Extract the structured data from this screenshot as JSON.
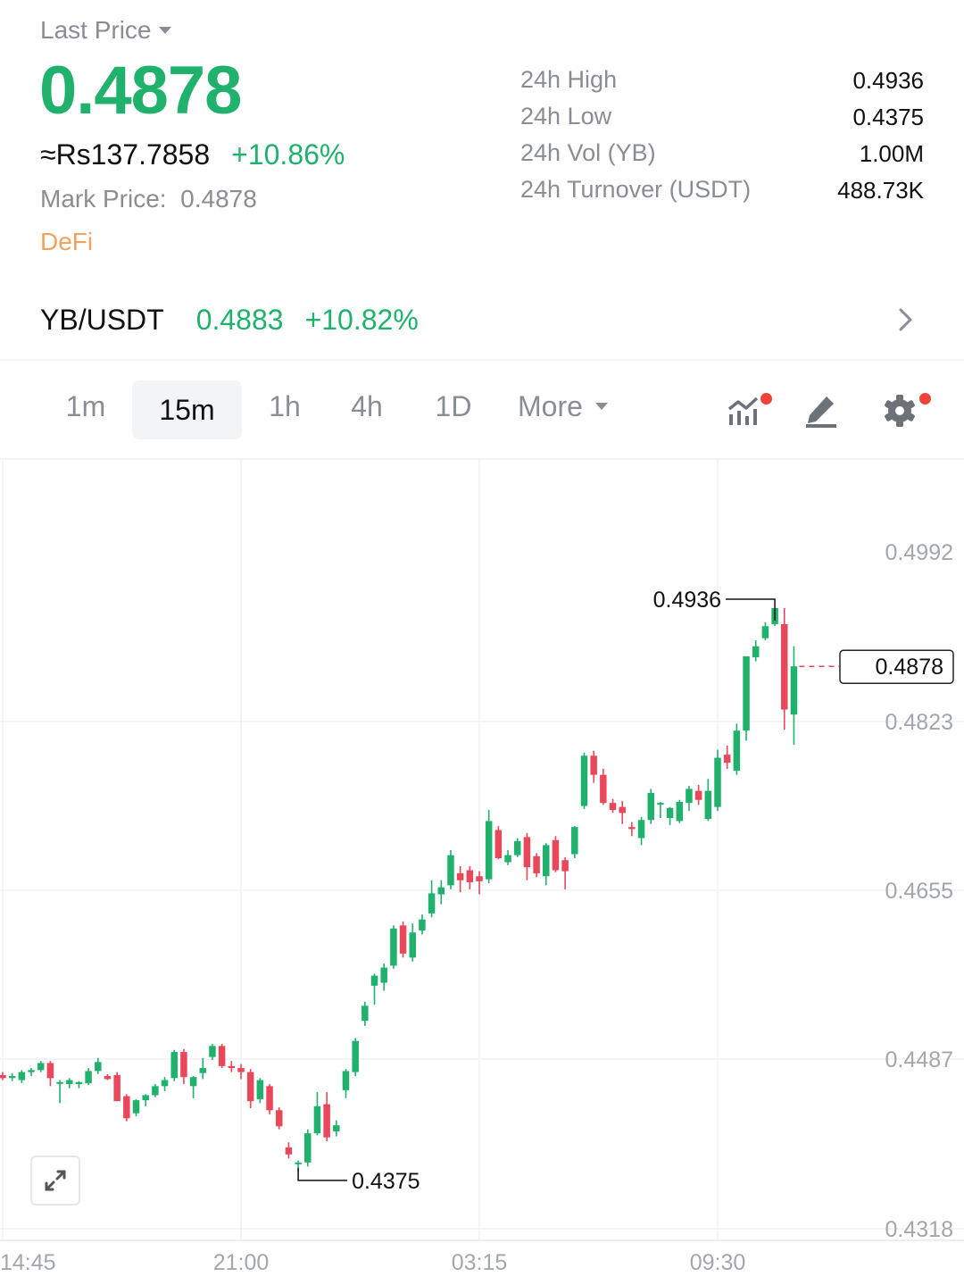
{
  "header": {
    "last_price_label": "Last Price",
    "last_price": "0.4878",
    "fiat_price": "≈Rs137.7858",
    "change_pct": "+10.86%",
    "mark_price_label": "Mark Price:",
    "mark_price": "0.4878",
    "tag": "DeFi"
  },
  "stats": [
    {
      "label": "24h High",
      "value": "0.4936"
    },
    {
      "label": "24h Low",
      "value": "0.4375"
    },
    {
      "label": "24h Vol (YB)",
      "value": "1.00M"
    },
    {
      "label": "24h Turnover (USDT)",
      "value": "488.73K"
    }
  ],
  "pair": {
    "symbol": "YB/USDT",
    "price": "0.4883",
    "change_pct": "+10.82%"
  },
  "timeframes": {
    "items": [
      "1m",
      "15m",
      "1h",
      "4h",
      "1D"
    ],
    "active": "15m",
    "more_label": "More"
  },
  "colors": {
    "up": "#20b26c",
    "down": "#e9475a",
    "accent_dot": "#f0433a",
    "tag": "#f0a35e"
  },
  "chart_data": {
    "type": "candlestick",
    "interval": "15m",
    "x_tick_labels": [
      "14:45",
      "21:00",
      "03:15",
      "09:30"
    ],
    "y_tick_labels": [
      "0.4992",
      "0.4823",
      "0.4655",
      "0.4487",
      "0.4318"
    ],
    "ylim": [
      0.4318,
      0.4992
    ],
    "high_marker": "0.4936",
    "low_marker": "0.4375",
    "last_price_marker": "0.4878",
    "grid": true,
    "candles": [
      [
        0.4471,
        0.4474,
        0.4466,
        0.4468
      ],
      [
        0.4468,
        0.4473,
        0.4465,
        0.447
      ],
      [
        0.4466,
        0.4476,
        0.4463,
        0.4474
      ],
      [
        0.4474,
        0.4478,
        0.447,
        0.4476
      ],
      [
        0.4476,
        0.4485,
        0.4474,
        0.4483
      ],
      [
        0.4483,
        0.4485,
        0.446,
        0.4468
      ],
      [
        0.4464,
        0.4466,
        0.4443,
        0.4464
      ],
      [
        0.4462,
        0.4468,
        0.4458,
        0.4466
      ],
      [
        0.4462,
        0.4465,
        0.4458,
        0.4464
      ],
      [
        0.4463,
        0.4478,
        0.4461,
        0.4475
      ],
      [
        0.4475,
        0.4488,
        0.4472,
        0.4484
      ],
      [
        0.447,
        0.4472,
        0.4466,
        0.4467
      ],
      [
        0.4471,
        0.4474,
        0.4448,
        0.4445
      ],
      [
        0.445,
        0.4452,
        0.4425,
        0.4428
      ],
      [
        0.4433,
        0.4447,
        0.443,
        0.4446
      ],
      [
        0.4446,
        0.4452,
        0.444,
        0.4451
      ],
      [
        0.4451,
        0.4462,
        0.4449,
        0.446
      ],
      [
        0.446,
        0.4469,
        0.4455,
        0.4466
      ],
      [
        0.4468,
        0.4496,
        0.4465,
        0.4494
      ],
      [
        0.4494,
        0.4497,
        0.4462,
        0.4469
      ],
      [
        0.446,
        0.447,
        0.4448,
        0.4469
      ],
      [
        0.4473,
        0.4488,
        0.4467,
        0.4478
      ],
      [
        0.4489,
        0.4502,
        0.4486,
        0.45
      ],
      [
        0.45,
        0.4502,
        0.4478,
        0.448
      ],
      [
        0.448,
        0.4485,
        0.4474,
        0.4478
      ],
      [
        0.4478,
        0.4482,
        0.4467,
        0.4474
      ],
      [
        0.4474,
        0.4477,
        0.4438,
        0.4445
      ],
      [
        0.4447,
        0.4468,
        0.4443,
        0.4466
      ],
      [
        0.446,
        0.4462,
        0.4432,
        0.4436
      ],
      [
        0.4436,
        0.4439,
        0.4417,
        0.442
      ],
      [
        0.4399,
        0.4404,
        0.4388,
        0.4392
      ],
      [
        0.4383,
        0.4386,
        0.4375,
        0.4384
      ],
      [
        0.4384,
        0.4417,
        0.438,
        0.4413
      ],
      [
        0.4413,
        0.4454,
        0.4411,
        0.444
      ],
      [
        0.4442,
        0.4454,
        0.4405,
        0.4409
      ],
      [
        0.4415,
        0.4426,
        0.441,
        0.4421
      ],
      [
        0.4456,
        0.4477,
        0.4448,
        0.4475
      ],
      [
        0.4474,
        0.4508,
        0.447,
        0.4505
      ],
      [
        0.4525,
        0.4544,
        0.452,
        0.454
      ],
      [
        0.456,
        0.4572,
        0.4541,
        0.457
      ],
      [
        0.4563,
        0.4582,
        0.4555,
        0.4578
      ],
      [
        0.458,
        0.462,
        0.4577,
        0.4617
      ],
      [
        0.462,
        0.4624,
        0.4588,
        0.4592
      ],
      [
        0.4588,
        0.4622,
        0.4584,
        0.4613
      ],
      [
        0.4615,
        0.4631,
        0.4611,
        0.4626
      ],
      [
        0.4632,
        0.4665,
        0.4628,
        0.4652
      ],
      [
        0.4651,
        0.4665,
        0.4641,
        0.4658
      ],
      [
        0.466,
        0.4695,
        0.4656,
        0.469
      ],
      [
        0.4672,
        0.4679,
        0.4653,
        0.4665
      ],
      [
        0.4675,
        0.4679,
        0.4656,
        0.4663
      ],
      [
        0.4669,
        0.4674,
        0.4651,
        0.4664
      ],
      [
        0.4666,
        0.4735,
        0.4662,
        0.4724
      ],
      [
        0.4715,
        0.4719,
        0.4686,
        0.4687
      ],
      [
        0.4683,
        0.4695,
        0.468,
        0.469
      ],
      [
        0.469,
        0.4707,
        0.4688,
        0.4704
      ],
      [
        0.4708,
        0.4712,
        0.4665,
        0.4678
      ],
      [
        0.4689,
        0.4692,
        0.4668,
        0.4672
      ],
      [
        0.4669,
        0.4702,
        0.466,
        0.47
      ],
      [
        0.4705,
        0.4709,
        0.4673,
        0.4675
      ],
      [
        0.4685,
        0.4688,
        0.4656,
        0.4674
      ],
      [
        0.4691,
        0.4719,
        0.4687,
        0.4718
      ],
      [
        0.4739,
        0.4792,
        0.4736,
        0.4789
      ],
      [
        0.4789,
        0.4794,
        0.4762,
        0.477
      ],
      [
        0.477,
        0.4776,
        0.474,
        0.4742
      ],
      [
        0.4742,
        0.4746,
        0.4732,
        0.4735
      ],
      [
        0.4738,
        0.4744,
        0.4721,
        0.4732
      ],
      [
        0.4718,
        0.4723,
        0.4709,
        0.4716
      ],
      [
        0.4707,
        0.4728,
        0.47,
        0.4725
      ],
      [
        0.4725,
        0.4756,
        0.4721,
        0.4752
      ],
      [
        0.4741,
        0.4743,
        0.4727,
        0.4742
      ],
      [
        0.4727,
        0.4738,
        0.472,
        0.4737
      ],
      [
        0.4724,
        0.4745,
        0.4722,
        0.4743
      ],
      [
        0.4742,
        0.4759,
        0.4734,
        0.4756
      ],
      [
        0.4754,
        0.476,
        0.474,
        0.4745
      ],
      [
        0.4726,
        0.4766,
        0.4724,
        0.4754
      ],
      [
        0.4738,
        0.4795,
        0.4734,
        0.4787
      ],
      [
        0.479,
        0.4799,
        0.4776,
        0.4782
      ],
      [
        0.4774,
        0.4821,
        0.477,
        0.4814
      ],
      [
        0.4814,
        0.4888,
        0.4804,
        0.4888
      ],
      [
        0.4887,
        0.4904,
        0.4883,
        0.4898
      ],
      [
        0.4906,
        0.4922,
        0.4904,
        0.4918
      ],
      [
        0.492,
        0.4936,
        0.4918,
        0.4936
      ],
      [
        0.492,
        0.4936,
        0.4815,
        0.4835
      ],
      [
        0.483,
        0.4898,
        0.48,
        0.4878
      ]
    ]
  }
}
